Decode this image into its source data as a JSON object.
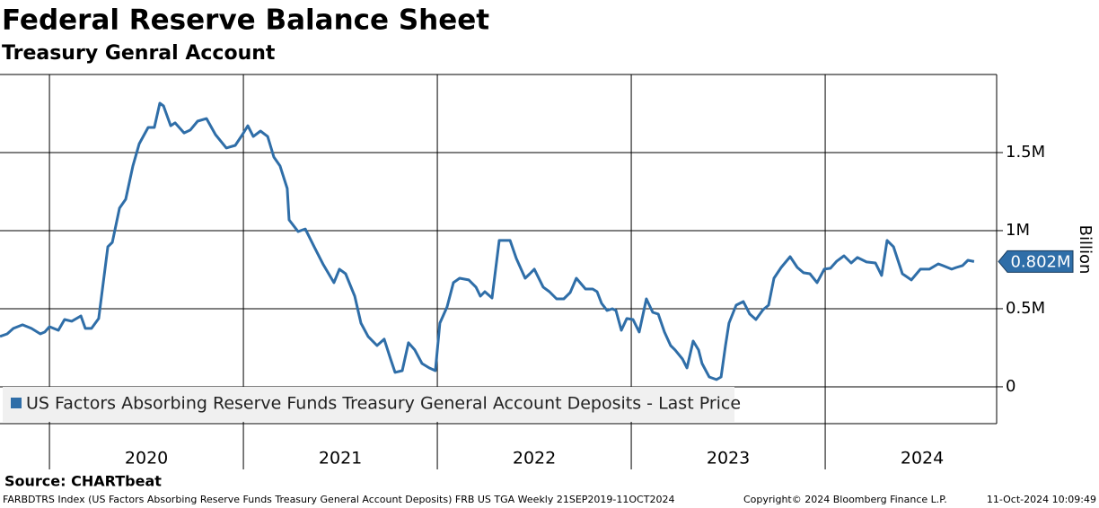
{
  "chart_data": {
    "type": "line",
    "title": "Federal Reserve Balance Sheet",
    "subtitle": "Treasury Genral Account",
    "y_label": "Billion",
    "source": "Source: CHARTbeat",
    "footer": {
      "description": "FARBDTRS Index (US Factors Absorbing Reserve Funds Treasury General Account Deposits) FRB US TGA  Weekly 21SEP2019-11OCT2024",
      "copyright": "Copyright© 2024 Bloomberg Finance L.P.",
      "timestamp": "11-Oct-2024 10:09:49"
    },
    "x": [
      2019.745,
      2019.782,
      2019.814,
      2019.861,
      2019.907,
      2019.953,
      2019.976,
      2020.0,
      2020.046,
      2020.078,
      2020.115,
      2020.162,
      2020.185,
      2020.217,
      2020.254,
      2020.301,
      2020.324,
      2020.361,
      2020.393,
      2020.43,
      2020.463,
      2020.509,
      2020.541,
      2020.569,
      2020.588,
      2020.625,
      2020.648,
      2020.694,
      2020.726,
      2020.764,
      2020.81,
      2020.856,
      2020.912,
      2020.958,
      2020.995,
      2021.023,
      2021.051,
      2021.088,
      2021.125,
      2021.157,
      2021.189,
      2021.226,
      2021.236,
      2021.282,
      2021.319,
      2021.365,
      2021.412,
      2021.467,
      2021.495,
      2021.527,
      2021.574,
      2021.606,
      2021.643,
      2021.689,
      2021.726,
      2021.759,
      2021.782,
      2021.819,
      2021.851,
      2021.884,
      2021.921,
      2021.958,
      2021.99,
      2022.013,
      2022.05,
      2022.083,
      2022.115,
      2022.162,
      2022.199,
      2022.222,
      2022.245,
      2022.282,
      2022.319,
      2022.375,
      2022.407,
      2022.453,
      2022.477,
      2022.5,
      2022.546,
      2022.578,
      2022.615,
      2022.652,
      2022.685,
      2022.717,
      2022.764,
      2022.801,
      2022.824,
      2022.847,
      2022.875,
      2022.902,
      2022.921,
      2022.949,
      2022.977,
      2023.009,
      2023.041,
      2023.078,
      2023.111,
      2023.139,
      2023.171,
      2023.203,
      2023.226,
      2023.264,
      2023.287,
      2023.319,
      2023.347,
      2023.365,
      2023.402,
      2023.439,
      2023.463,
      2023.486,
      2023.504,
      2023.541,
      2023.578,
      2023.611,
      2023.643,
      2023.68,
      2023.708,
      2023.736,
      2023.773,
      2023.819,
      2023.856,
      2023.888,
      2023.921,
      2023.958,
      2023.995,
      2024.027,
      2024.06,
      2024.097,
      2024.134,
      2024.166,
      2024.213,
      2024.259,
      2024.291,
      2024.319,
      2024.352,
      2024.398,
      2024.444,
      2024.491,
      2024.537,
      2024.583,
      2024.606,
      2024.652,
      2024.676,
      2024.708,
      2024.736,
      2024.768
    ],
    "series": [
      {
        "name": "US Factors Absorbing Reserve Funds Treasury General Account Deposits - Last Price",
        "color": "#2f6ea8",
        "values": [
          0.322,
          0.339,
          0.374,
          0.397,
          0.374,
          0.339,
          0.351,
          0.385,
          0.362,
          0.431,
          0.42,
          0.454,
          0.374,
          0.374,
          0.437,
          0.897,
          0.925,
          1.144,
          1.201,
          1.414,
          1.557,
          1.661,
          1.661,
          1.816,
          1.799,
          1.672,
          1.69,
          1.626,
          1.644,
          1.701,
          1.718,
          1.615,
          1.529,
          1.546,
          1.615,
          1.672,
          1.603,
          1.638,
          1.603,
          1.471,
          1.414,
          1.27,
          1.069,
          0.994,
          1.011,
          0.897,
          0.782,
          0.667,
          0.753,
          0.724,
          0.58,
          0.408,
          0.322,
          0.264,
          0.305,
          0.178,
          0.092,
          0.103,
          0.282,
          0.236,
          0.149,
          0.121,
          0.103,
          0.408,
          0.511,
          0.667,
          0.695,
          0.684,
          0.638,
          0.58,
          0.609,
          0.569,
          0.937,
          0.937,
          0.822,
          0.695,
          0.724,
          0.753,
          0.638,
          0.609,
          0.563,
          0.563,
          0.603,
          0.695,
          0.626,
          0.626,
          0.609,
          0.534,
          0.489,
          0.5,
          0.489,
          0.362,
          0.437,
          0.431,
          0.351,
          0.563,
          0.477,
          0.466,
          0.351,
          0.264,
          0.236,
          0.178,
          0.121,
          0.293,
          0.236,
          0.149,
          0.063,
          0.046,
          0.063,
          0.264,
          0.408,
          0.523,
          0.546,
          0.466,
          0.431,
          0.494,
          0.523,
          0.695,
          0.764,
          0.833,
          0.764,
          0.73,
          0.724,
          0.667,
          0.753,
          0.759,
          0.805,
          0.839,
          0.793,
          0.828,
          0.799,
          0.793,
          0.713,
          0.937,
          0.897,
          0.724,
          0.684,
          0.753,
          0.753,
          0.787,
          0.776,
          0.753,
          0.764,
          0.776,
          0.81,
          0.802
        ]
      }
    ],
    "last_price": {
      "value": 0.802,
      "label": "0.802M"
    },
    "xlim": [
      2019.745,
      2024.884
    ],
    "xticks": [
      {
        "value": 2020,
        "label": "2020"
      },
      {
        "value": 2021,
        "label": "2021"
      },
      {
        "value": 2022,
        "label": "2022"
      },
      {
        "value": 2023,
        "label": "2023"
      },
      {
        "value": 2024,
        "label": "2024"
      }
    ],
    "ylim": [
      -0.236,
      2.0
    ],
    "yticks": [
      0,
      {
        "value": 0.5,
        "label": "0.5M"
      },
      {
        "value": 1,
        "label": "1M"
      },
      {
        "value": 1.5,
        "label": "1.5M"
      }
    ],
    "grid": true,
    "legend": "lower left"
  }
}
